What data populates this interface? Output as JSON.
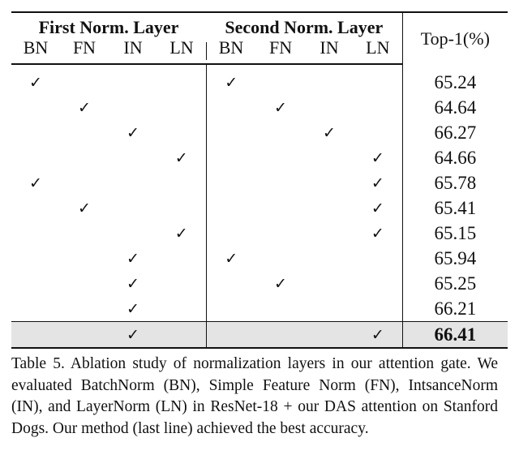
{
  "table": {
    "group_headers": {
      "first": "First Norm. Layer",
      "second": "Second Norm. Layer",
      "metric": "Top-1(%)"
    },
    "sub_headers": [
      "BN",
      "FN",
      "IN",
      "LN",
      "BN",
      "FN",
      "IN",
      "LN"
    ],
    "check_glyph": "✓",
    "rows": [
      {
        "first": "BN",
        "second": "BN",
        "top1": "65.24",
        "best": false
      },
      {
        "first": "FN",
        "second": "FN",
        "top1": "64.64",
        "best": false
      },
      {
        "first": "IN",
        "second": "IN",
        "top1": "66.27",
        "best": false
      },
      {
        "first": "LN",
        "second": "LN",
        "top1": "64.66",
        "best": false
      },
      {
        "first": "BN",
        "second": "LN",
        "top1": "65.78",
        "best": false
      },
      {
        "first": "FN",
        "second": "LN",
        "top1": "65.41",
        "best": false
      },
      {
        "first": "LN",
        "second": "LN",
        "top1": "65.15",
        "best": false
      },
      {
        "first": "IN",
        "second": "BN",
        "top1": "65.94",
        "best": false
      },
      {
        "first": "IN",
        "second": "FN",
        "top1": "65.25",
        "best": false
      },
      {
        "first": "IN",
        "second": "",
        "top1": "66.21",
        "best": false
      },
      {
        "first": "IN",
        "second": "LN",
        "top1": "66.41",
        "best": true
      }
    ],
    "highlight_color": "#e4e4e4"
  },
  "caption": "Table 5.  Ablation study of normalization layers in our attention gate. We evaluated BatchNorm (BN), Simple Feature Norm (FN), IntsanceNorm (IN), and LayerNorm (LN) in ResNet-18 + our DAS attention on Stanford Dogs.  Our method (last line) achieved the best accuracy."
}
